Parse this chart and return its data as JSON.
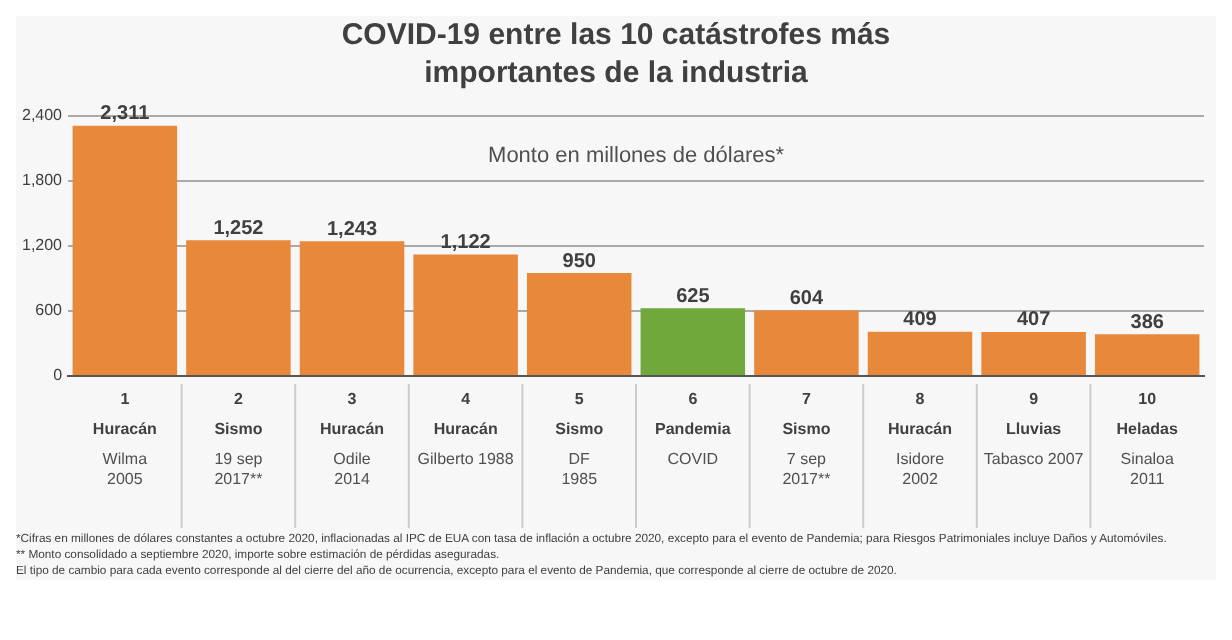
{
  "chart_data": {
    "type": "bar",
    "title": "COVID-19 entre las 10 catástrofes más importantes de la industria",
    "categories": [
      "1\nHuracán\nWilma\n2005",
      "2\nSismo\n19 sep\n2017**",
      "3\nHuracán\nOdile\n2014",
      "4\nHuracán\nGilberto 1988",
      "5\nSismo\nDF\n1985",
      "6\nPandemia\nCOVID",
      "7\nSismo\n7 sep\n2017**",
      "8\nHuracán\nIsidore\n2002",
      "9\nLluvias\nTabasco 2007",
      "10\nHeladas\nSinaloa\n2011"
    ],
    "values": [
      2311,
      1252,
      1243,
      1122,
      950,
      625,
      604,
      409,
      407,
      386
    ],
    "colors": [
      "#e8883a",
      "#e8883a",
      "#e8883a",
      "#e8883a",
      "#e8883a",
      "#70a83c",
      "#e8883a",
      "#e8883a",
      "#e8883a",
      "#e8883a"
    ],
    "ylim": [
      0,
      2400
    ],
    "yticks": [
      0,
      {
        "value": 600,
        "label": "600"
      },
      {
        "value": 1200,
        "label": "1,200"
      },
      {
        "value": 1800,
        "label": "1,800"
      },
      {
        "value": 2400,
        "label": "2,400"
      }
    ],
    "value_labels": [
      "2,311",
      "1,252",
      "1,243",
      "1,122",
      "950",
      "625",
      "604",
      "409",
      "407",
      "386"
    ],
    "grid": "y",
    "annotations": [
      "Monto en millones de dólares*",
      "*Cifras en millones de dólares constantes a octubre 2020, inflacionadas al IPC de EUA con tasa de inflación a octubre 2020, excepto para el evento de Pandemia; para Riesgos Patrimoniales incluye Daños y Automóviles.",
      "** Monto consolidado a septiembre 2020, importe sobre estimación de pérdidas aseguradas.",
      "El tipo de cambio para cada evento corresponde al del cierre del año de ocurrencia, excepto para el evento de Pandemia, que corresponde al cierre de octubre de 2020."
    ]
  }
}
